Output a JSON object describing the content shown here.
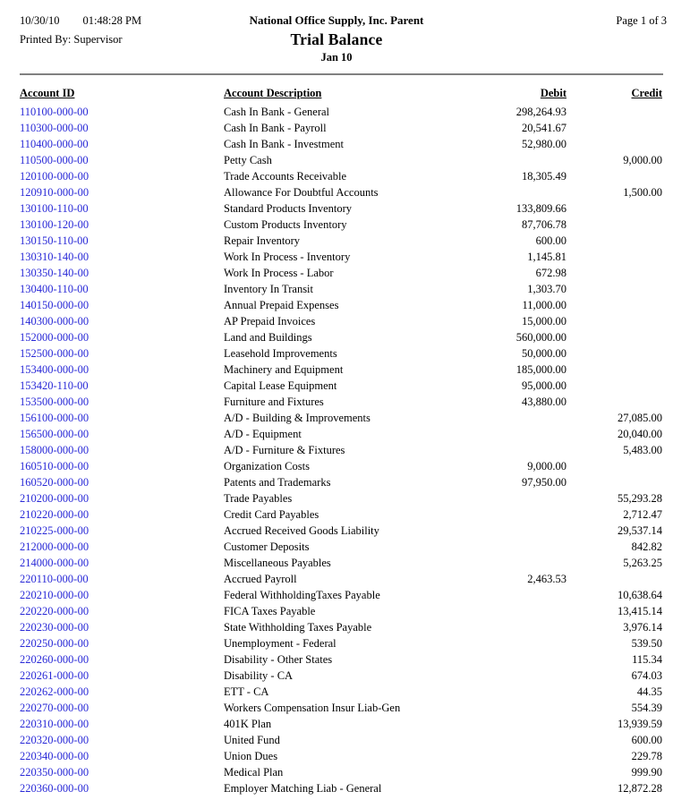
{
  "header": {
    "date": "10/30/10",
    "time": "01:48:28 PM",
    "printed_by": "Printed By: Supervisor",
    "company": "National Office Supply, Inc. Parent",
    "report_title": "Trial Balance",
    "period": "Jan 10",
    "page_indicator": "Page 1 of 3"
  },
  "colors": {
    "link_blue": "#2828d7",
    "rule_gray": "#808080"
  },
  "table": {
    "headers": {
      "account_id": "Account ID",
      "description": "Account Description",
      "debit": "Debit",
      "credit": "Credit"
    },
    "rows": [
      {
        "account_id": "110100-000-00",
        "description": "Cash In Bank - General",
        "debit": "298,264.93",
        "credit": ""
      },
      {
        "account_id": "110300-000-00",
        "description": "Cash In Bank - Payroll",
        "debit": "20,541.67",
        "credit": ""
      },
      {
        "account_id": "110400-000-00",
        "description": "Cash In Bank - Investment",
        "debit": "52,980.00",
        "credit": ""
      },
      {
        "account_id": "110500-000-00",
        "description": "Petty Cash",
        "debit": "",
        "credit": "9,000.00"
      },
      {
        "account_id": "120100-000-00",
        "description": "Trade Accounts Receivable",
        "debit": "18,305.49",
        "credit": ""
      },
      {
        "account_id": "120910-000-00",
        "description": "Allowance For Doubtful Accounts",
        "debit": "",
        "credit": "1,500.00"
      },
      {
        "account_id": "130100-110-00",
        "description": "Standard Products Inventory",
        "debit": "133,809.66",
        "credit": ""
      },
      {
        "account_id": "130100-120-00",
        "description": "Custom Products Inventory",
        "debit": "87,706.78",
        "credit": ""
      },
      {
        "account_id": "130150-110-00",
        "description": "Repair Inventory",
        "debit": "600.00",
        "credit": ""
      },
      {
        "account_id": "130310-140-00",
        "description": "Work In Process - Inventory",
        "debit": "1,145.81",
        "credit": ""
      },
      {
        "account_id": "130350-140-00",
        "description": "Work In Process - Labor",
        "debit": "672.98",
        "credit": ""
      },
      {
        "account_id": "130400-110-00",
        "description": "Inventory In Transit",
        "debit": "1,303.70",
        "credit": ""
      },
      {
        "account_id": "140150-000-00",
        "description": "Annual Prepaid Expenses",
        "debit": "11,000.00",
        "credit": ""
      },
      {
        "account_id": "140300-000-00",
        "description": "AP Prepaid Invoices",
        "debit": "15,000.00",
        "credit": ""
      },
      {
        "account_id": "152000-000-00",
        "description": "Land and Buildings",
        "debit": "560,000.00",
        "credit": ""
      },
      {
        "account_id": "152500-000-00",
        "description": "Leasehold Improvements",
        "debit": "50,000.00",
        "credit": ""
      },
      {
        "account_id": "153400-000-00",
        "description": "Machinery and Equipment",
        "debit": "185,000.00",
        "credit": ""
      },
      {
        "account_id": "153420-110-00",
        "description": "Capital Lease Equipment",
        "debit": "95,000.00",
        "credit": ""
      },
      {
        "account_id": "153500-000-00",
        "description": "Furniture and Fixtures",
        "debit": "43,880.00",
        "credit": ""
      },
      {
        "account_id": "156100-000-00",
        "description": "A/D - Building & Improvements",
        "debit": "",
        "credit": "27,085.00"
      },
      {
        "account_id": "156500-000-00",
        "description": "A/D - Equipment",
        "debit": "",
        "credit": "20,040.00"
      },
      {
        "account_id": "158000-000-00",
        "description": "A/D - Furniture & Fixtures",
        "debit": "",
        "credit": "5,483.00"
      },
      {
        "account_id": "160510-000-00",
        "description": "Organization Costs",
        "debit": "9,000.00",
        "credit": ""
      },
      {
        "account_id": "160520-000-00",
        "description": "Patents and Trademarks",
        "debit": "97,950.00",
        "credit": ""
      },
      {
        "account_id": "210200-000-00",
        "description": "Trade Payables",
        "debit": "",
        "credit": "55,293.28"
      },
      {
        "account_id": "210220-000-00",
        "description": "Credit Card Payables",
        "debit": "",
        "credit": "2,712.47"
      },
      {
        "account_id": "210225-000-00",
        "description": "Accrued Received Goods Liability",
        "debit": "",
        "credit": "29,537.14"
      },
      {
        "account_id": "212000-000-00",
        "description": "Customer Deposits",
        "debit": "",
        "credit": "842.82"
      },
      {
        "account_id": "214000-000-00",
        "description": "Miscellaneous Payables",
        "debit": "",
        "credit": "5,263.25"
      },
      {
        "account_id": "220110-000-00",
        "description": "Accrued Payroll",
        "debit": "2,463.53",
        "credit": ""
      },
      {
        "account_id": "220210-000-00",
        "description": "Federal WithholdingTaxes Payable",
        "debit": "",
        "credit": "10,638.64"
      },
      {
        "account_id": "220220-000-00",
        "description": "FICA Taxes Payable",
        "debit": "",
        "credit": "13,415.14"
      },
      {
        "account_id": "220230-000-00",
        "description": "State Withholding Taxes Payable",
        "debit": "",
        "credit": "3,976.14"
      },
      {
        "account_id": "220250-000-00",
        "description": "Unemployment - Federal",
        "debit": "",
        "credit": "539.50"
      },
      {
        "account_id": "220260-000-00",
        "description": "Disability - Other States",
        "debit": "",
        "credit": "115.34"
      },
      {
        "account_id": "220261-000-00",
        "description": "Disability - CA",
        "debit": "",
        "credit": "674.03"
      },
      {
        "account_id": "220262-000-00",
        "description": "ETT - CA",
        "debit": "",
        "credit": "44.35"
      },
      {
        "account_id": "220270-000-00",
        "description": "Workers Compensation Insur Liab-Gen",
        "debit": "",
        "credit": "554.39"
      },
      {
        "account_id": "220310-000-00",
        "description": "401K Plan",
        "debit": "",
        "credit": "13,939.59"
      },
      {
        "account_id": "220320-000-00",
        "description": "United Fund",
        "debit": "",
        "credit": "600.00"
      },
      {
        "account_id": "220340-000-00",
        "description": "Union Dues",
        "debit": "",
        "credit": "229.78"
      },
      {
        "account_id": "220350-000-00",
        "description": "Medical Plan",
        "debit": "",
        "credit": "999.90"
      },
      {
        "account_id": "220360-000-00",
        "description": "Employer Matching Liab - General",
        "debit": "",
        "credit": "12,872.28"
      }
    ]
  }
}
